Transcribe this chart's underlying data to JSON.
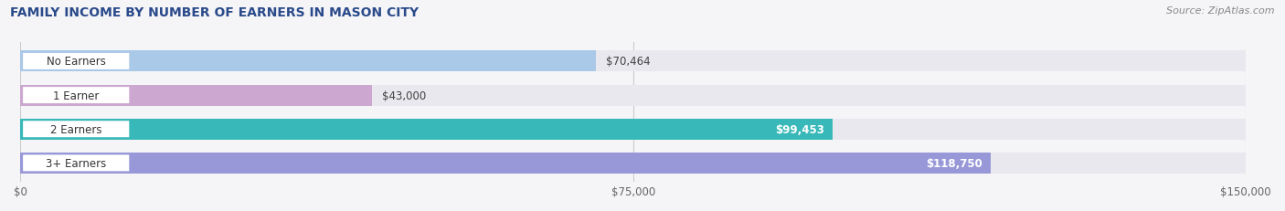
{
  "title": "FAMILY INCOME BY NUMBER OF EARNERS IN MASON CITY",
  "source": "Source: ZipAtlas.com",
  "categories": [
    "No Earners",
    "1 Earner",
    "2 Earners",
    "3+ Earners"
  ],
  "values": [
    70464,
    43000,
    99453,
    118750
  ],
  "bar_colors": [
    "#aac8e8",
    "#cca8d0",
    "#38b8b8",
    "#9898d8"
  ],
  "track_color": "#e8e8ee",
  "xlim": [
    0,
    150000
  ],
  "xticks": [
    0,
    75000,
    150000
  ],
  "xtick_labels": [
    "$0",
    "$75,000",
    "$150,000"
  ],
  "bar_height": 0.62,
  "value_label_inside": [
    false,
    false,
    true,
    true
  ],
  "background_color": "#f5f5f8",
  "title_color": "#2a4a8a",
  "source_color": "#888888"
}
